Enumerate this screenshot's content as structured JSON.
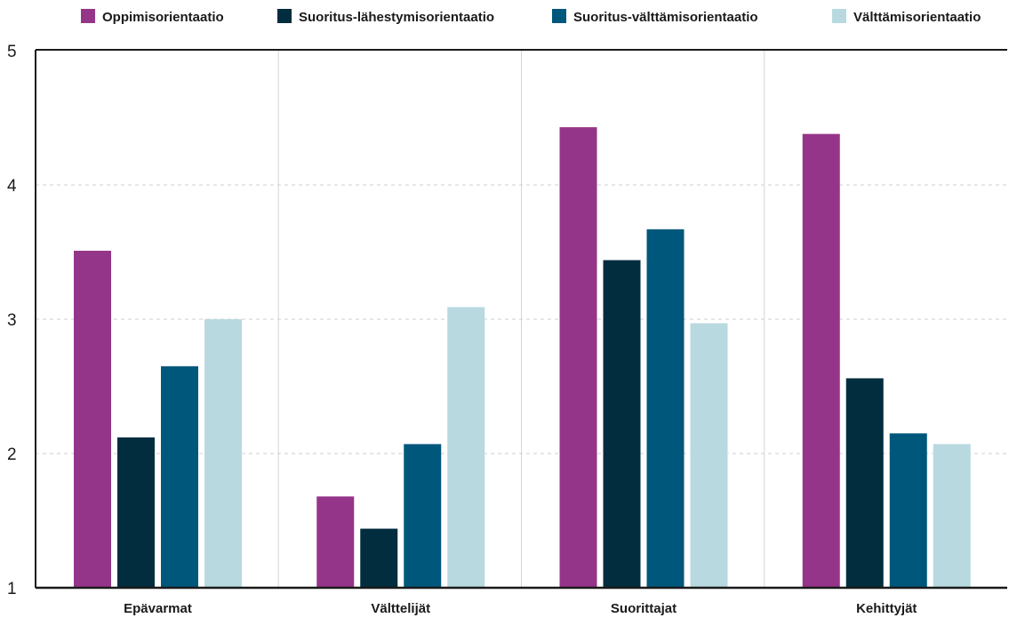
{
  "chart_data": {
    "type": "bar",
    "categories": [
      "Epävarmat",
      "Välttelijät",
      "Suorittajat",
      "Kehittyjät"
    ],
    "series": [
      {
        "name": "Oppimisorientaatio",
        "color": "#953589",
        "values": [
          3.51,
          1.68,
          4.43,
          4.38
        ]
      },
      {
        "name": "Suoritus-lähestymisorientaatio",
        "color": "#022d3e",
        "values": [
          2.12,
          1.44,
          3.44,
          2.56
        ]
      },
      {
        "name": "Suoritus-välttämisorientaatio",
        "color": "#00577c",
        "values": [
          2.65,
          2.07,
          3.67,
          2.15
        ]
      },
      {
        "name": "Välttämisorientaatio",
        "color": "#b9d9e0",
        "values": [
          3.0,
          3.09,
          2.97,
          2.07
        ]
      }
    ],
    "ylim": [
      1,
      5
    ],
    "yticks": [
      1,
      2,
      3,
      4,
      5
    ],
    "grid": true,
    "legend": "top",
    "title": "",
    "xlabel": "",
    "ylabel": ""
  }
}
